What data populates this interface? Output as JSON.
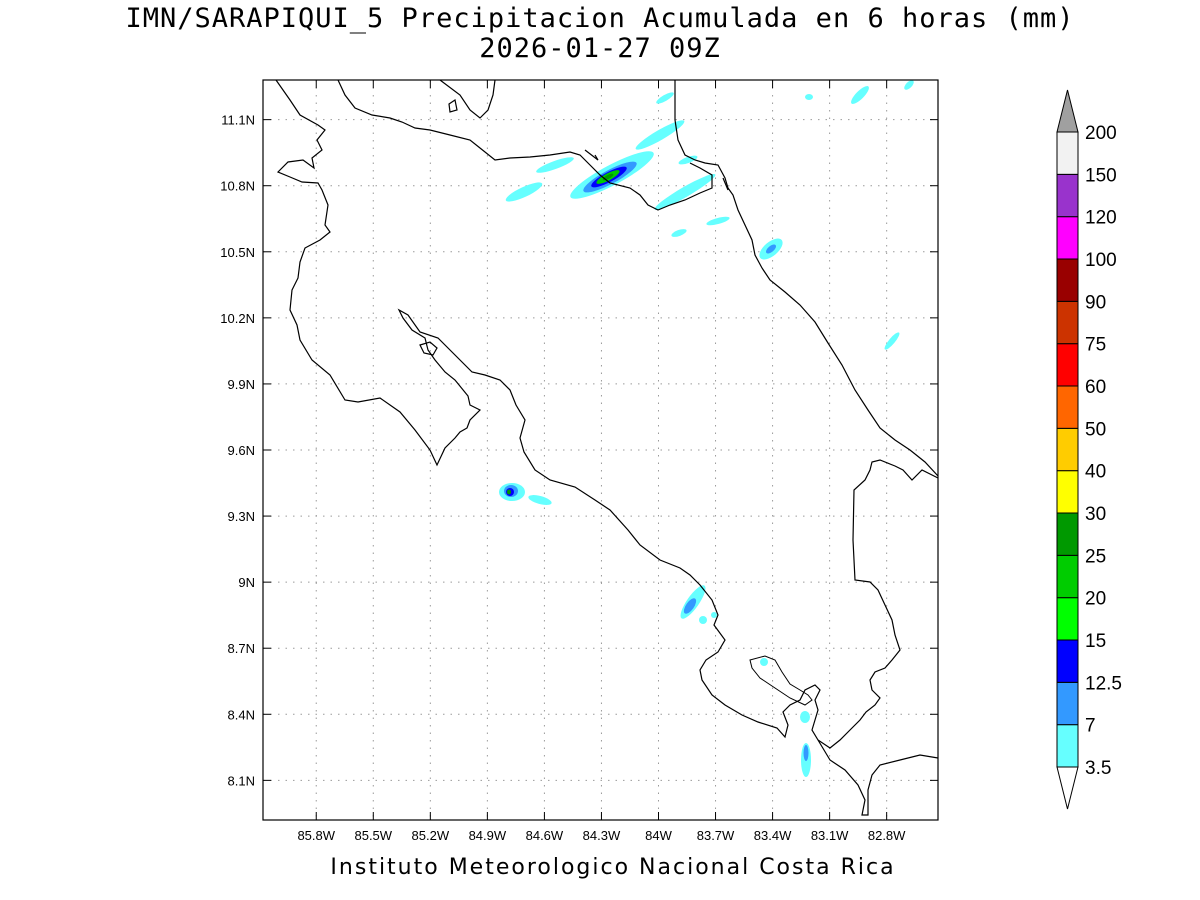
{
  "title_line1": "IMN/SARAPIQUI_5 Precipitacion Acumulada en 6 horas (mm)",
  "title_line2": "2026-01-27 09Z",
  "footer": "Instituto Meteorologico Nacional Costa Rica",
  "map": {
    "lon_range": [
      -86.08,
      -82.53
    ],
    "lat_range": [
      7.92,
      11.28
    ],
    "lon_ticks": [
      {
        "value": -85.8,
        "label": "85.8W"
      },
      {
        "value": -85.5,
        "label": "85.5W"
      },
      {
        "value": -85.2,
        "label": "85.2W"
      },
      {
        "value": -84.9,
        "label": "84.9W"
      },
      {
        "value": -84.6,
        "label": "84.6W"
      },
      {
        "value": -84.3,
        "label": "84.3W"
      },
      {
        "value": -84.0,
        "label": "84W"
      },
      {
        "value": -83.7,
        "label": "83.7W"
      },
      {
        "value": -83.4,
        "label": "83.4W"
      },
      {
        "value": -83.1,
        "label": "83.1W"
      },
      {
        "value": -82.8,
        "label": "82.8W"
      }
    ],
    "lat_ticks": [
      {
        "value": 8.1,
        "label": "8.1N"
      },
      {
        "value": 8.4,
        "label": "8.4N"
      },
      {
        "value": 8.7,
        "label": "8.7N"
      },
      {
        "value": 9.0,
        "label": "9N"
      },
      {
        "value": 9.3,
        "label": "9.3N"
      },
      {
        "value": 9.6,
        "label": "9.6N"
      },
      {
        "value": 9.9,
        "label": "9.9N"
      },
      {
        "value": 10.2,
        "label": "10.2N"
      },
      {
        "value": 10.5,
        "label": "10.5N"
      },
      {
        "value": 10.8,
        "label": "10.8N"
      },
      {
        "value": 11.1,
        "label": "11.1N"
      }
    ],
    "grid": true,
    "grid_color": "#9a9a9a"
  },
  "colorbar": {
    "levels": [
      {
        "value": "3.5",
        "color": "#66ffff"
      },
      {
        "value": "7",
        "color": "#3399ff"
      },
      {
        "value": "12.5",
        "color": "#0000ff"
      },
      {
        "value": "15",
        "color": "#00ff00"
      },
      {
        "value": "20",
        "color": "#00cc00"
      },
      {
        "value": "25",
        "color": "#009900"
      },
      {
        "value": "30",
        "color": "#ffff00"
      },
      {
        "value": "40",
        "color": "#ffcc00"
      },
      {
        "value": "50",
        "color": "#ff6600"
      },
      {
        "value": "60",
        "color": "#ff0000"
      },
      {
        "value": "75",
        "color": "#cc3300"
      },
      {
        "value": "90",
        "color": "#990000"
      },
      {
        "value": "100",
        "color": "#ff00ff"
      },
      {
        "value": "120",
        "color": "#9933cc"
      },
      {
        "value": "150",
        "color": "#f2f2f2"
      },
      {
        "value": "200",
        "color": "#a0a0a0"
      }
    ]
  },
  "precip_areas": [
    {
      "lon": -84.22,
      "lat": 10.87,
      "level": "25"
    },
    {
      "lon": -84.71,
      "lat": 9.46,
      "level": "25"
    },
    {
      "lon": -83.75,
      "lat": 8.93,
      "level": "7"
    },
    {
      "lon": -83.34,
      "lat": 10.53,
      "level": "7"
    },
    {
      "lon": -83.18,
      "lat": 8.3,
      "level": "7"
    },
    {
      "lon": -84.58,
      "lat": 10.82,
      "level": "3.5"
    },
    {
      "lon": -83.78,
      "lat": 10.8,
      "level": "3.5"
    },
    {
      "lon": -82.9,
      "lat": 10.14,
      "level": "3.5"
    },
    {
      "lon": -82.9,
      "lat": 11.2,
      "level": "3.5"
    }
  ]
}
